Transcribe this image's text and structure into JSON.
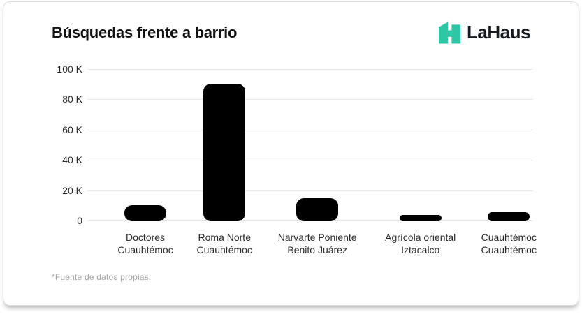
{
  "header": {
    "title": "Búsquedas frente a barrio",
    "logo": {
      "text": "LaHaus",
      "icon": "lahaus-house-icon",
      "icon_color": "#2FC6A5",
      "text_color": "#141A1F"
    }
  },
  "chart_data": {
    "type": "bar",
    "title": "Búsquedas frente a barrio",
    "xlabel": "",
    "ylabel": "",
    "ylim": [
      0,
      100000
    ],
    "grid": true,
    "legend": "none",
    "bar_color": "#000000",
    "grid_color": "#e7e7e7",
    "categories": [
      "Doctores\nCuauhtémoc",
      "Roma Norte\nCuauhtémoc",
      "Narvarte Poniente\nBenito Juárez",
      "Agrícola oriental\nIztacalco",
      "Cuauhtémoc\nCuauhtémoc"
    ],
    "values": [
      10500,
      91000,
      15000,
      4000,
      6000
    ],
    "yticks": [
      {
        "value": 0,
        "label": "0"
      },
      {
        "value": 20000,
        "label": "20 K"
      },
      {
        "value": 40000,
        "label": "40 K"
      },
      {
        "value": 60000,
        "label": "60 K"
      },
      {
        "value": 80000,
        "label": "80 K"
      },
      {
        "value": 100000,
        "label": "100 K"
      }
    ]
  },
  "footer": {
    "note": "*Fuente de datos propias."
  }
}
